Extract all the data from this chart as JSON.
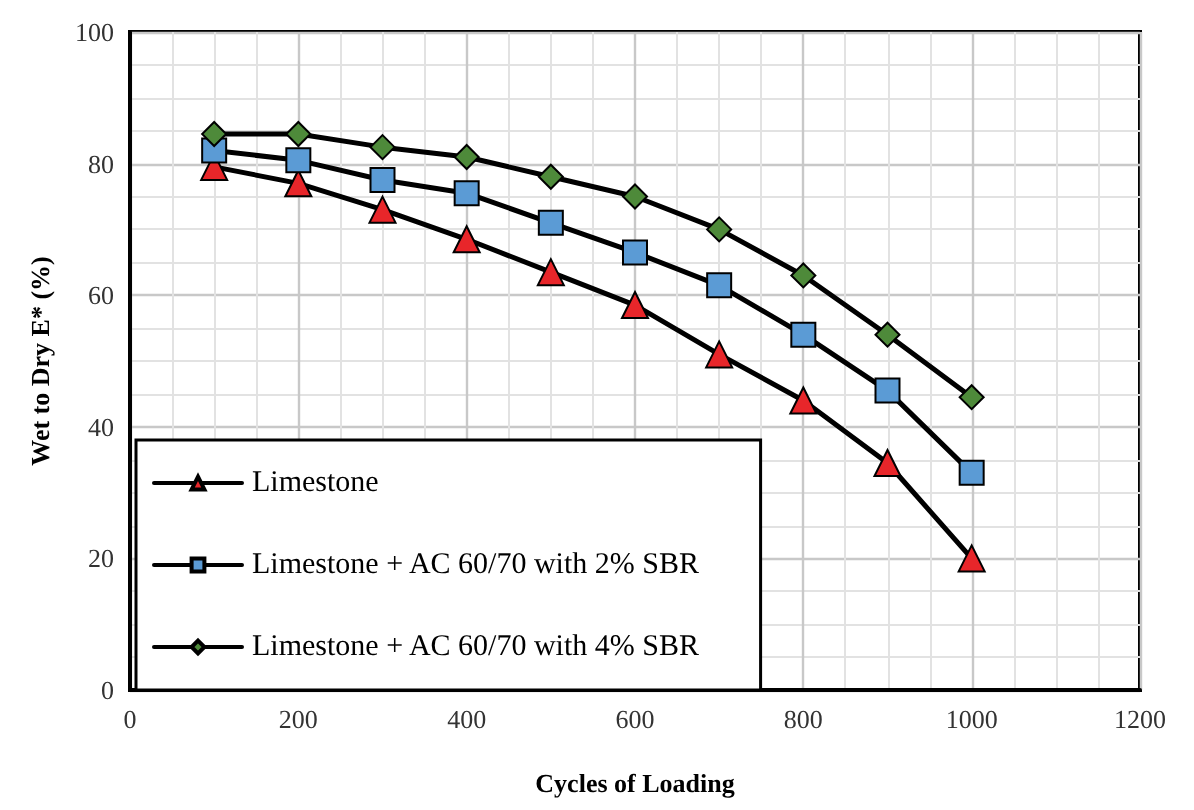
{
  "chart_data": {
    "type": "line",
    "xlabel": "Cycles of Loading",
    "ylabel": "Wet to Dry E* (%)",
    "x": [
      100,
      200,
      300,
      400,
      500,
      600,
      700,
      800,
      900,
      1000
    ],
    "xlim": [
      0,
      1200
    ],
    "xticks": [
      0,
      200,
      400,
      600,
      800,
      1000,
      1200
    ],
    "ylim": [
      0,
      100
    ],
    "yticks": [
      0,
      20,
      40,
      60,
      80,
      100
    ],
    "grid": true,
    "legend": "bottom left",
    "line_style": "solid",
    "series": [
      {
        "name": "Limestone",
        "color": "#e8262a",
        "marker": "triangle",
        "values": [
          79.5,
          77,
          73,
          68.5,
          63.5,
          58.5,
          51,
          44,
          34.5,
          20
        ]
      },
      {
        "name": "Limestone + AC 60/70 with 2% SBR",
        "color": "#5b9bd5",
        "marker": "square",
        "values": [
          82,
          80.5,
          77.5,
          75.5,
          71,
          66.5,
          61.5,
          54,
          45.5,
          33
        ]
      },
      {
        "name": "Limestone + AC 60/70 with 4% SBR",
        "color": "#4e8a3a",
        "marker": "diamond",
        "values": [
          84.5,
          84.5,
          82.5,
          81,
          78,
          75,
          70,
          63,
          54,
          44.5
        ]
      }
    ]
  }
}
